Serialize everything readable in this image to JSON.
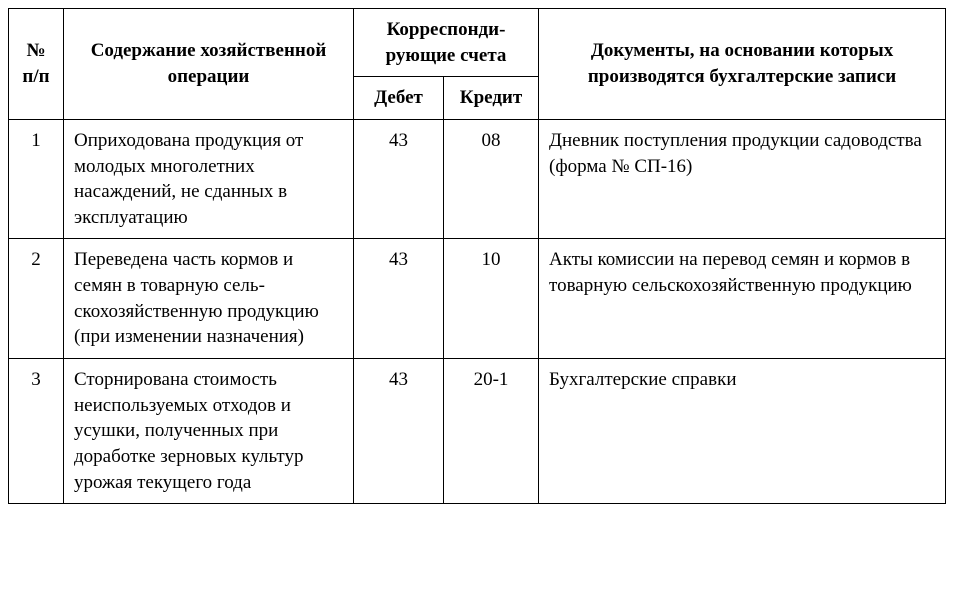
{
  "table": {
    "headers": {
      "num": "№ п/п",
      "content": "Содержание хозяйственной операции",
      "accounts": "Корреспонди­рующие счета",
      "debit": "Дебет",
      "credit": "Кредит",
      "docs": "Документы, на основании которых производятся бухгалтерские записи"
    },
    "rows": [
      {
        "num": "1",
        "content": "Оприходована продукция от молодых многолетних насаждений, не сданных в эксплуатацию",
        "debit": "43",
        "credit": "08",
        "docs": "Дневник поступления продукции садоводства (форма № СП-16)"
      },
      {
        "num": "2",
        "content": "Переведена часть кормов и семян в товарную сель­скохозяйственную про­дукцию (при изменении назначения)",
        "debit": "43",
        "credit": "10",
        "docs": "Акты комиссии на пе­ревод семян и кормов в товарную сельскохозяйс­твенную продукцию"
      },
      {
        "num": "3",
        "content": "Сторнирована стоимость неиспользуемых отходов и усушки, полученных при доработке зерновых куль­тур урожая текущего года",
        "debit": "43",
        "credit": "20-1",
        "docs": "Бухгалтерские справки"
      }
    ]
  }
}
